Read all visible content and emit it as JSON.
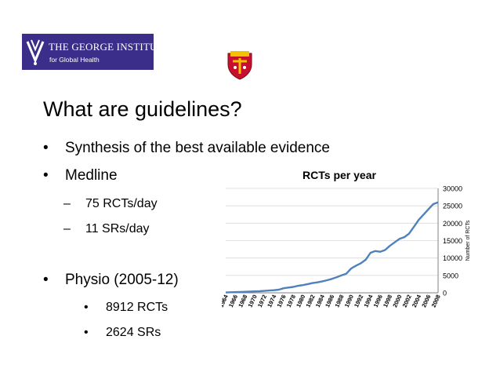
{
  "logo": {
    "line1": "THE GEORGE INSTITUTE",
    "line2": "for Global Health",
    "mark_icon": "george-institute-v-mark",
    "bg_color": "#3b2e8a"
  },
  "crest": {
    "icon": "university-crest",
    "primary_color": "#c8102e",
    "accent_color": "#f2c200"
  },
  "slide": {
    "title": "What are guidelines?",
    "bullets": [
      {
        "marker": "•",
        "text": "Synthesis of the best available evidence"
      },
      {
        "marker": "•",
        "text": "Medline"
      },
      {
        "marker": "–",
        "text": "75 RCTs/day"
      },
      {
        "marker": "–",
        "text": "11 SRs/day"
      },
      {
        "marker": "•",
        "text": "Physio (2005-12)"
      },
      {
        "marker": "•",
        "text": "8912 RCTs"
      },
      {
        "marker": "•",
        "text": "2624 SRs"
      }
    ]
  },
  "chart_data": {
    "type": "line",
    "title": "RCTs per year",
    "xlabel": "",
    "ylabel": "Number of RCTs",
    "ylim": [
      0,
      30000
    ],
    "yticks": [
      0,
      5000,
      10000,
      15000,
      20000,
      25000,
      30000
    ],
    "xticks": [
      "1964",
      "1966",
      "1968",
      "1970",
      "1972",
      "1974",
      "1976",
      "1978",
      "1980",
      "1982",
      "1984",
      "1986",
      "1988",
      "1990",
      "1992",
      "1994",
      "1996",
      "1998",
      "2000",
      "2002",
      "2004",
      "2006",
      "2008"
    ],
    "grid": true,
    "line_color": "#4f81bd",
    "series": [
      {
        "x": [
          1964,
          1965,
          1966,
          1967,
          1968,
          1969,
          1970,
          1971,
          1972,
          1973,
          1974,
          1975,
          1976,
          1977,
          1978,
          1979,
          1980,
          1981,
          1982,
          1983,
          1984,
          1985,
          1986,
          1987,
          1988,
          1989,
          1990,
          1991,
          1992,
          1993,
          1994,
          1995,
          1996,
          1997,
          1998,
          1999,
          2000,
          2001,
          2002,
          2003,
          2004,
          2005,
          2006,
          2007,
          2008
        ],
        "values": [
          100,
          150,
          200,
          250,
          300,
          350,
          400,
          450,
          550,
          650,
          750,
          900,
          1300,
          1500,
          1700,
          2000,
          2200,
          2500,
          2800,
          3000,
          3300,
          3600,
          4000,
          4500,
          5000,
          5500,
          7000,
          7800,
          8500,
          9500,
          11500,
          12000,
          11800,
          12300,
          13500,
          14500,
          15500,
          16000,
          17000,
          19000,
          21000,
          22500,
          24000,
          25500,
          26000
        ]
      }
    ]
  }
}
